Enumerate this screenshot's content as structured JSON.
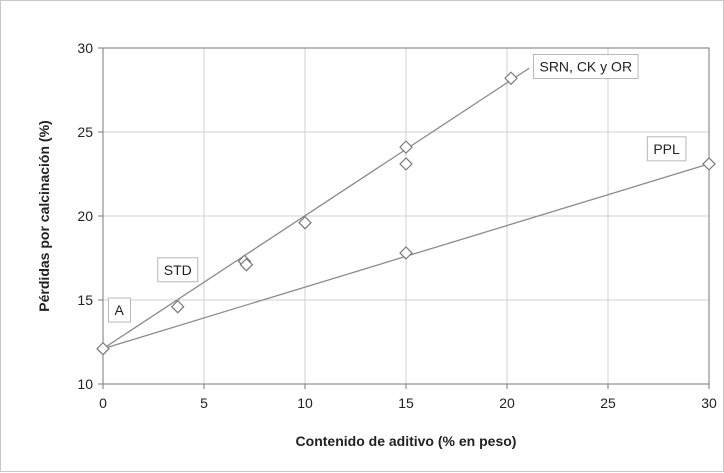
{
  "chart_data": {
    "type": "scatter",
    "xlabel": "Contenido de aditivo (% en peso)",
    "ylabel": "Pérdidas por calcinación (%)",
    "xlim": [
      0,
      30
    ],
    "ylim": [
      10,
      30
    ],
    "xticks": [
      "0",
      "5",
      "10",
      "15",
      "20",
      "25",
      "30"
    ],
    "yticks": [
      "10",
      "15",
      "20",
      "25",
      "30"
    ],
    "grid": true,
    "points": [
      {
        "x": 0,
        "y": 12.1
      },
      {
        "x": 3.7,
        "y": 14.6
      },
      {
        "x": 7,
        "y": 17.3
      },
      {
        "x": 7.1,
        "y": 17.1
      },
      {
        "x": 10,
        "y": 19.6
      },
      {
        "x": 15,
        "y": 24.1
      },
      {
        "x": 15,
        "y": 23.1
      },
      {
        "x": 15,
        "y": 17.8
      },
      {
        "x": 20.2,
        "y": 28.2
      },
      {
        "x": 30,
        "y": 23.1
      }
    ],
    "trendlines": [
      {
        "x": [
          0,
          21.1
        ],
        "y": [
          12.1,
          28.8
        ]
      },
      {
        "x": [
          0,
          30
        ],
        "y": [
          12.1,
          23.1
        ]
      }
    ],
    "annotations": [
      {
        "text": "SRN, CK y OR",
        "x": 23.9,
        "y": 28.9
      },
      {
        "text": "PPL",
        "x": 27.9,
        "y": 24.0
      },
      {
        "text": "STD",
        "x": 3.7,
        "y": 16.8
      },
      {
        "text": "A",
        "x": 0.8,
        "y": 14.4
      }
    ]
  }
}
